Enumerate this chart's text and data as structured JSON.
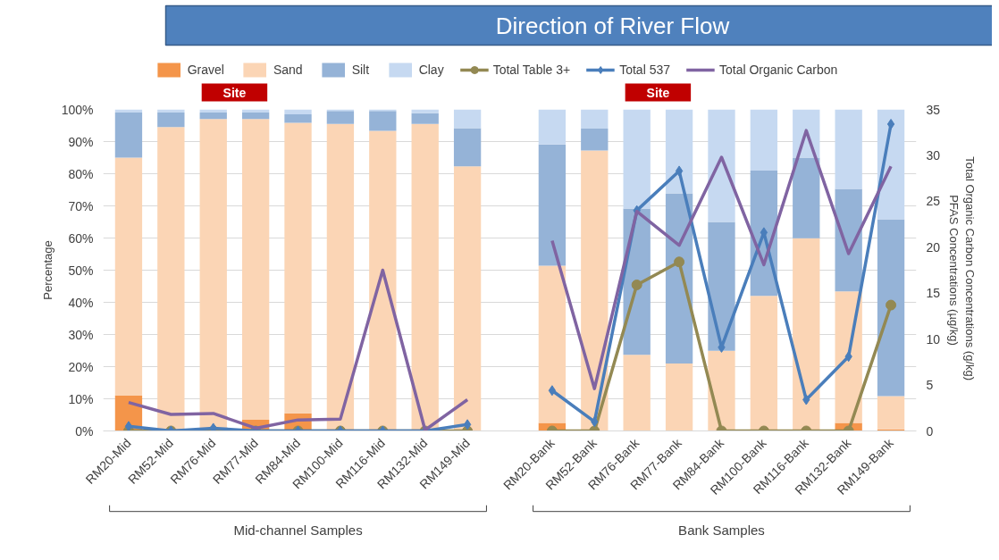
{
  "chart_data": {
    "type": "bar",
    "stacked": true,
    "categories": [
      "RM20-Mid",
      "RM52-Mid",
      "RM76-Mid",
      "RM77-Mid",
      "RM84-Mid",
      "RM100-Mid",
      "RM116-Mid",
      "RM132-Mid",
      "RM149-Mid",
      null,
      "RM20-Bank",
      "RM52-Bank",
      "RM76-Bank",
      "RM77-Bank",
      "RM84-Bank",
      "RM100-Bank",
      "RM116-Bank",
      "RM132-Bank",
      "RM149-Bank"
    ],
    "series": [
      {
        "name": "Gravel",
        "color": "#f4954a",
        "values": [
          11,
          0,
          0,
          3.5,
          5.5,
          0,
          0,
          0,
          0,
          null,
          2.5,
          0,
          0,
          0,
          0,
          0,
          0,
          2.5,
          0.5
        ]
      },
      {
        "name": "Sand",
        "color": "#fbd5b5",
        "values": [
          74,
          94.5,
          97,
          93.5,
          90.3,
          95.5,
          93.3,
          95.5,
          82.3,
          null,
          48.9,
          87.2,
          23.7,
          21,
          24.9,
          42,
          59.9,
          40.9,
          10.3
        ]
      },
      {
        "name": "Silt",
        "color": "#95b3d7",
        "values": [
          14,
          4.5,
          2,
          2,
          2.7,
          4,
          6.2,
          3.3,
          11.9,
          null,
          37.7,
          6.8,
          45.5,
          52.9,
          40.1,
          39,
          25.1,
          31.9,
          55
        ]
      },
      {
        "name": "Clay",
        "color": "#c6d9f1",
        "values": [
          1,
          1,
          1,
          1,
          1.5,
          0.5,
          0.5,
          1.2,
          5.8,
          null,
          10.9,
          6,
          30.8,
          26.1,
          35,
          19,
          15,
          24.7,
          34.2
        ]
      },
      {
        "name": "Total Table 3+",
        "type": "line",
        "axis": "y2",
        "marker": "circle",
        "color": "#938953",
        "values": [
          0,
          0,
          0,
          0,
          0,
          0,
          0,
          0,
          0,
          null,
          0,
          0,
          15.9,
          18.4,
          0,
          0,
          0,
          0,
          13.7
        ]
      },
      {
        "name": "Total 537",
        "type": "line",
        "axis": "y2",
        "marker": "diamond",
        "color": "#4a7ebb",
        "values": [
          0.5,
          0,
          0.3,
          0,
          0,
          0,
          0,
          0,
          0.7,
          null,
          4.4,
          1,
          24,
          28.3,
          9.1,
          21.6,
          3.4,
          8.1,
          33.4
        ]
      },
      {
        "name": "Total Organic Carbon",
        "type": "line",
        "axis": "y2",
        "color": "#8064a2",
        "values": [
          3.1,
          1.8,
          1.9,
          0.3,
          1.2,
          1.3,
          17.5,
          0.1,
          3.4,
          null,
          20.7,
          4.6,
          23.9,
          20.2,
          29.8,
          18.1,
          32.7,
          19.3,
          28.8
        ]
      }
    ],
    "ylim": [
      0,
      100
    ],
    "yticks": [
      {
        "value": 0,
        "label": "0%"
      },
      {
        "value": 10,
        "label": "10%"
      },
      {
        "value": 20,
        "label": "20%"
      },
      {
        "value": 30,
        "label": "30%"
      },
      {
        "value": 40,
        "label": "40%"
      },
      {
        "value": 50,
        "label": "50%"
      },
      {
        "value": 60,
        "label": "60%"
      },
      {
        "value": 70,
        "label": "70%"
      },
      {
        "value": 80,
        "label": "80%"
      },
      {
        "value": 90,
        "label": "90%"
      },
      {
        "value": 100,
        "label": "100%"
      }
    ],
    "y2lim": [
      0,
      35
    ],
    "y2ticks": [
      0,
      5,
      10,
      15,
      20,
      25,
      30,
      35
    ],
    "ylabel": "Percentage",
    "y2label": "Total Organic Carbon Concentrations  (g/kg)\nPFAS Concentrations (µg/kg)",
    "grid": "y",
    "legend": "top",
    "annotations": [
      "Direction of River Flow",
      "Site",
      "Site",
      "Mid-channel Samples",
      "Bank Samples"
    ]
  }
}
